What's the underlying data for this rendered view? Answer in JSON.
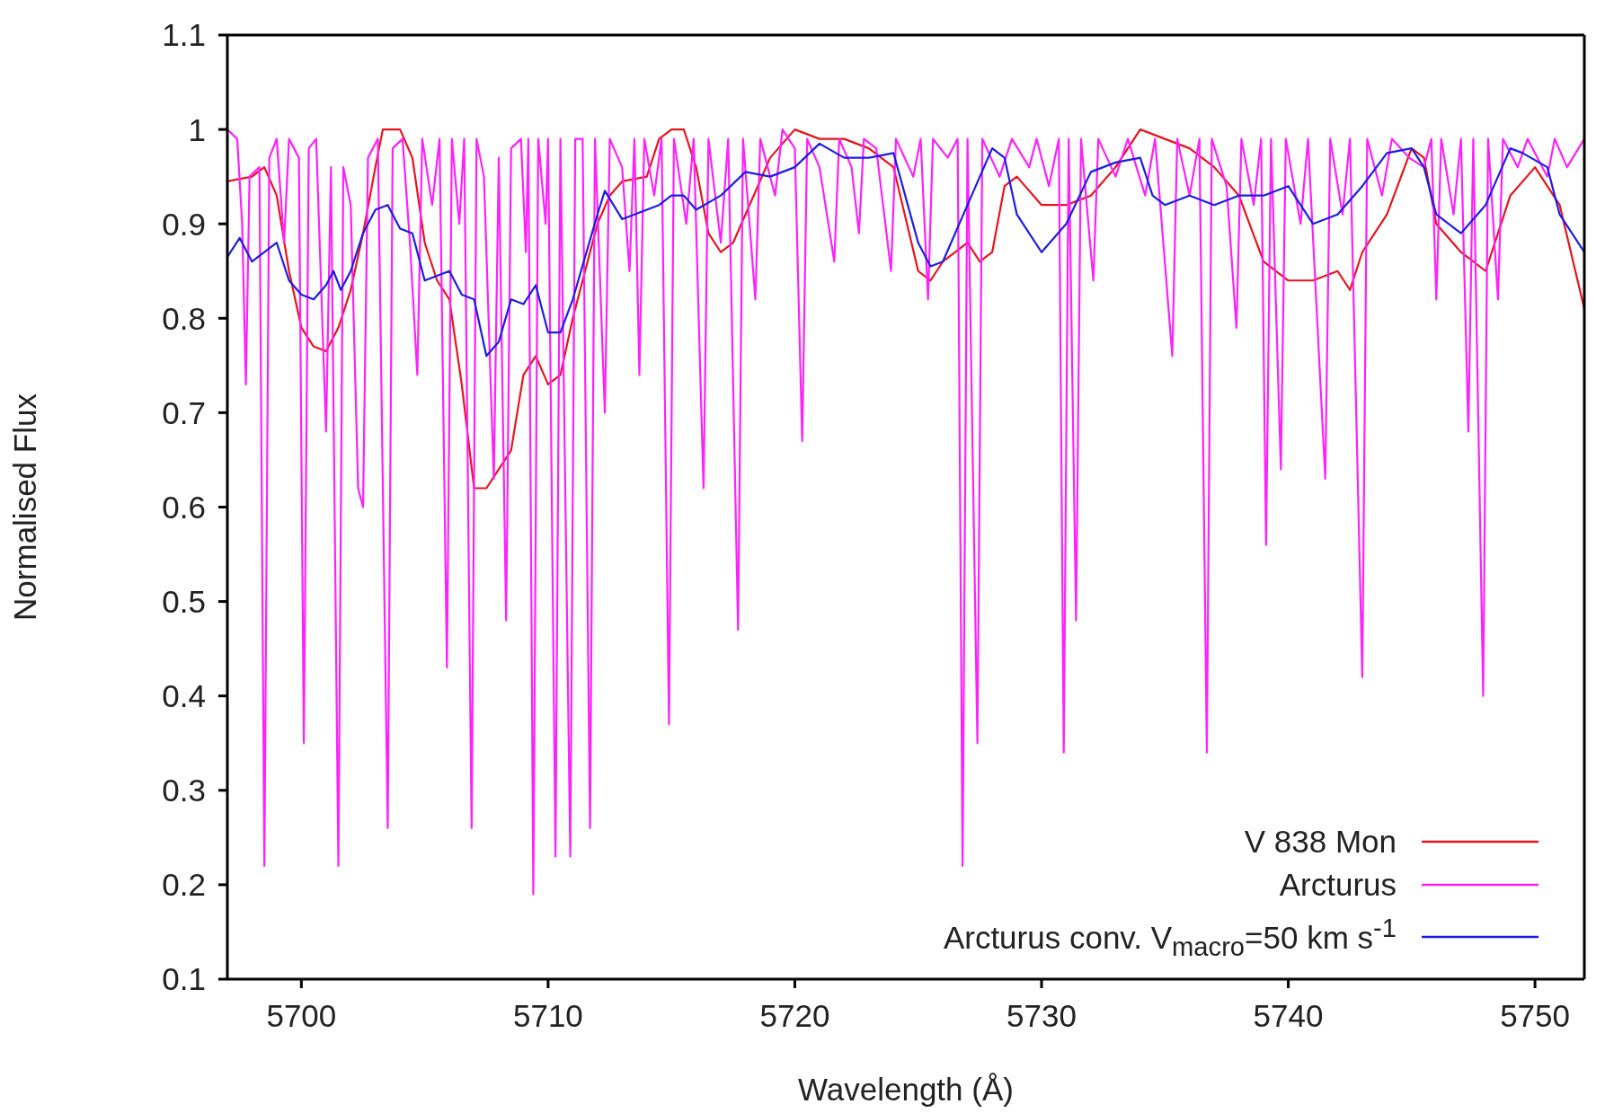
{
  "chart_data": {
    "type": "line",
    "xlabel": "Wavelength (Å)",
    "ylabel": "Normalised Flux",
    "xlim": [
      5697,
      5752
    ],
    "xticks": [
      5700,
      5710,
      5720,
      5730,
      5740,
      5750
    ],
    "ylim": [
      0.1,
      1.1
    ],
    "yticks": [
      0.1,
      0.2,
      0.3,
      0.4,
      0.5,
      0.6,
      0.7,
      0.8,
      0.9,
      1,
      1.1
    ],
    "grid": false,
    "legend": "bottom right",
    "marker": "none",
    "line_style": "solid",
    "series": [
      {
        "name": "V 838 Mon",
        "color": "#e8141c",
        "x": [
          5697,
          5698,
          5698.5,
          5699,
          5699.5,
          5700,
          5700.5,
          5701,
          5701.5,
          5702,
          5702.5,
          5703,
          5703.3,
          5704,
          5704.5,
          5705,
          5705.5,
          5706,
          5706.5,
          5707,
          5707.5,
          5708,
          5708.5,
          5709,
          5709.5,
          5710,
          5710.5,
          5711,
          5712,
          5712.5,
          5713,
          5714,
          5714.5,
          5715,
          5715.5,
          5716,
          5716.5,
          5717,
          5717.5,
          5718,
          5719,
          5720,
          5721,
          5722,
          5723,
          5724,
          5725,
          5725.5,
          5726,
          5727,
          5727.5,
          5728,
          5728.5,
          5729,
          5730,
          5731,
          5732,
          5733,
          5734,
          5735,
          5736,
          5737,
          5738,
          5739,
          5740,
          5741,
          5742,
          5742.5,
          5743,
          5744,
          5745,
          5745.5,
          5746,
          5747,
          5748,
          5748.5,
          5749,
          5750,
          5751,
          5752
        ],
        "values": [
          0.945,
          0.95,
          0.96,
          0.93,
          0.85,
          0.79,
          0.77,
          0.765,
          0.79,
          0.83,
          0.89,
          0.96,
          1.0,
          1.0,
          0.97,
          0.88,
          0.84,
          0.82,
          0.73,
          0.62,
          0.62,
          0.64,
          0.66,
          0.74,
          0.76,
          0.73,
          0.74,
          0.8,
          0.9,
          0.93,
          0.945,
          0.95,
          0.99,
          1.0,
          1.0,
          0.96,
          0.89,
          0.87,
          0.88,
          0.91,
          0.97,
          1.0,
          0.99,
          0.99,
          0.98,
          0.96,
          0.85,
          0.84,
          0.86,
          0.88,
          0.86,
          0.87,
          0.94,
          0.95,
          0.92,
          0.92,
          0.93,
          0.96,
          1.0,
          0.99,
          0.98,
          0.96,
          0.93,
          0.86,
          0.84,
          0.84,
          0.85,
          0.83,
          0.87,
          0.91,
          0.98,
          0.97,
          0.9,
          0.87,
          0.85,
          0.89,
          0.93,
          0.96,
          0.92,
          0.81
        ]
      },
      {
        "name": "Arcturus",
        "color": "#ff22ff",
        "x": [
          5697.0,
          5697.4,
          5697.6,
          5697.75,
          5697.9,
          5698.3,
          5698.5,
          5698.7,
          5699.0,
          5699.3,
          5699.5,
          5699.9,
          5700.1,
          5700.3,
          5700.6,
          5701.0,
          5701.2,
          5701.5,
          5701.7,
          5702.0,
          5702.3,
          5702.5,
          5702.7,
          5703.1,
          5703.5,
          5703.7,
          5704.1,
          5704.4,
          5704.7,
          5704.9,
          5705.3,
          5705.6,
          5705.9,
          5706.1,
          5706.4,
          5706.6,
          5706.9,
          5707.1,
          5707.4,
          5707.8,
          5708.0,
          5708.3,
          5708.5,
          5708.9,
          5709.1,
          5709.2,
          5709.4,
          5709.6,
          5709.9,
          5710.0,
          5710.3,
          5710.5,
          5710.9,
          5711.1,
          5711.4,
          5711.7,
          5711.9,
          5712.3,
          5712.5,
          5713.0,
          5713.3,
          5713.5,
          5713.7,
          5713.9,
          5714.3,
          5714.6,
          5714.9,
          5715.1,
          5715.6,
          5715.9,
          5716.3,
          5716.5,
          5717.0,
          5717.3,
          5717.7,
          5717.9,
          5718.4,
          5718.6,
          5719.2,
          5719.5,
          5720.0,
          5720.3,
          5720.5,
          5721.0,
          5721.6,
          5721.8,
          5722.3,
          5722.6,
          5722.8,
          5723.3,
          5723.9,
          5724.1,
          5724.8,
          5725.1,
          5725.4,
          5725.6,
          5726.2,
          5726.6,
          5726.8,
          5727.0,
          5727.4,
          5727.6,
          5728.3,
          5728.8,
          5729.5,
          5729.8,
          5730.3,
          5730.7,
          5730.9,
          5731.1,
          5731.4,
          5731.6,
          5732.1,
          5732.3,
          5733.0,
          5733.5,
          5734.2,
          5734.6,
          5735.3,
          5735.5,
          5736.0,
          5736.4,
          5736.7,
          5736.9,
          5737.5,
          5737.9,
          5738.1,
          5738.6,
          5738.9,
          5739.1,
          5739.3,
          5739.7,
          5739.9,
          5740.5,
          5740.8,
          5741.5,
          5741.7,
          5742.2,
          5742.5,
          5743.0,
          5743.2,
          5743.8,
          5744.2,
          5744.9,
          5745.5,
          5745.8,
          5746.0,
          5746.2,
          5746.7,
          5747.0,
          5747.3,
          5747.5,
          5747.9,
          5748.1,
          5748.5,
          5748.7,
          5749.3,
          5749.7,
          5750.5,
          5750.8,
          5751.3,
          5752.0
        ],
        "values": [
          1.0,
          0.99,
          0.9,
          0.73,
          0.95,
          0.96,
          0.22,
          0.97,
          0.99,
          0.88,
          0.99,
          0.97,
          0.35,
          0.98,
          0.99,
          0.68,
          0.96,
          0.22,
          0.96,
          0.92,
          0.62,
          0.6,
          0.97,
          0.99,
          0.26,
          0.98,
          0.99,
          0.88,
          0.74,
          0.99,
          0.92,
          0.99,
          0.43,
          0.99,
          0.9,
          0.99,
          0.26,
          0.99,
          0.95,
          0.63,
          0.97,
          0.48,
          0.98,
          0.99,
          0.87,
          0.99,
          0.19,
          0.99,
          0.9,
          0.99,
          0.23,
          0.99,
          0.23,
          0.99,
          0.99,
          0.26,
          0.99,
          0.7,
          0.99,
          0.96,
          0.85,
          0.99,
          0.74,
          0.99,
          0.93,
          0.99,
          0.37,
          0.99,
          0.9,
          0.99,
          0.62,
          0.99,
          0.88,
          0.99,
          0.47,
          0.99,
          0.82,
          0.99,
          0.93,
          1.0,
          0.98,
          0.67,
          0.99,
          0.96,
          0.86,
          0.99,
          0.96,
          0.89,
          0.99,
          0.98,
          0.85,
          0.99,
          0.95,
          0.99,
          0.82,
          0.99,
          0.97,
          0.99,
          0.22,
          0.99,
          0.35,
          0.99,
          0.95,
          0.99,
          0.96,
          0.99,
          0.94,
          0.99,
          0.34,
          0.99,
          0.48,
          0.99,
          0.84,
          0.99,
          0.95,
          0.99,
          0.93,
          0.99,
          0.76,
          0.99,
          0.93,
          0.99,
          0.34,
          0.99,
          0.94,
          0.79,
          0.99,
          0.92,
          0.99,
          0.56,
          0.99,
          0.64,
          0.99,
          0.9,
          0.99,
          0.63,
          0.99,
          0.91,
          0.99,
          0.42,
          0.99,
          0.93,
          0.99,
          0.97,
          0.96,
          0.99,
          0.82,
          0.99,
          0.91,
          0.99,
          0.68,
          0.99,
          0.4,
          0.99,
          0.82,
          0.99,
          0.96,
          0.99,
          0.95,
          0.99,
          0.96,
          0.99
        ]
      },
      {
        "name": "Arcturus conv. V$_{macro}$=50 km s$^{-1}$",
        "color": "#1c1ce6",
        "x": [
          5697,
          5697.5,
          5698,
          5699,
          5699.5,
          5700,
          5700.5,
          5701,
          5701.3,
          5701.6,
          5702,
          5702.5,
          5703,
          5703.5,
          5704,
          5704.5,
          5705,
          5705.5,
          5706,
          5706.5,
          5707,
          5707.5,
          5708,
          5708.5,
          5709,
          5709.5,
          5710,
          5710.5,
          5711,
          5712,
          5712.3,
          5713,
          5714,
          5714.5,
          5715,
          5715.5,
          5716,
          5717,
          5718,
          5719,
          5720,
          5721,
          5722,
          5723,
          5724,
          5725,
          5725.5,
          5726,
          5727,
          5728,
          5728.5,
          5729,
          5730,
          5731,
          5732,
          5733,
          5734,
          5734.5,
          5735,
          5736,
          5737,
          5738,
          5739,
          5740,
          5741,
          5742,
          5743,
          5744,
          5745,
          5745.5,
          5746,
          5747,
          5748,
          5749,
          5749.5,
          5750.5,
          5751,
          5752
        ],
        "values": [
          0.865,
          0.885,
          0.86,
          0.88,
          0.84,
          0.825,
          0.82,
          0.835,
          0.85,
          0.83,
          0.85,
          0.89,
          0.915,
          0.92,
          0.895,
          0.89,
          0.84,
          0.845,
          0.85,
          0.825,
          0.82,
          0.76,
          0.775,
          0.82,
          0.815,
          0.835,
          0.785,
          0.785,
          0.82,
          0.91,
          0.935,
          0.905,
          0.915,
          0.92,
          0.93,
          0.93,
          0.915,
          0.93,
          0.955,
          0.95,
          0.96,
          0.985,
          0.97,
          0.97,
          0.975,
          0.88,
          0.855,
          0.86,
          0.92,
          0.98,
          0.97,
          0.91,
          0.87,
          0.9,
          0.955,
          0.965,
          0.97,
          0.93,
          0.92,
          0.93,
          0.92,
          0.93,
          0.93,
          0.94,
          0.9,
          0.91,
          0.94,
          0.975,
          0.98,
          0.96,
          0.91,
          0.89,
          0.92,
          0.98,
          0.975,
          0.96,
          0.91,
          0.87
        ]
      }
    ]
  }
}
